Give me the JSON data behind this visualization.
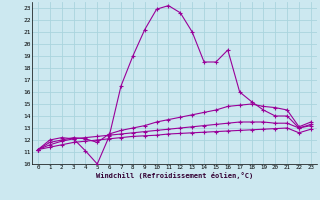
{
  "xlabel": "Windchill (Refroidissement éolien,°C)",
  "bg_color": "#cce8f0",
  "grid_color": "#aad4de",
  "line_color": "#990099",
  "xlim": [
    -0.5,
    23.5
  ],
  "ylim": [
    10,
    23.5
  ],
  "xticks": [
    0,
    1,
    2,
    3,
    4,
    5,
    6,
    7,
    8,
    9,
    10,
    11,
    12,
    13,
    14,
    15,
    16,
    17,
    18,
    19,
    20,
    21,
    22,
    23
  ],
  "yticks": [
    10,
    11,
    12,
    13,
    14,
    15,
    16,
    17,
    18,
    19,
    20,
    21,
    22,
    23
  ],
  "line1_x": [
    0,
    1,
    2,
    3,
    4,
    5,
    6,
    7,
    8,
    9,
    10,
    11,
    12,
    13,
    14,
    15,
    16,
    17,
    18,
    19,
    20,
    21,
    22,
    23
  ],
  "line1_y": [
    11.2,
    12.0,
    12.2,
    12.1,
    11.1,
    10.0,
    12.3,
    16.5,
    19.0,
    21.2,
    22.9,
    23.2,
    22.6,
    21.0,
    18.5,
    18.5,
    19.5,
    16.0,
    15.2,
    14.5,
    14.0,
    14.0,
    13.0,
    13.3
  ],
  "line2_x": [
    0,
    1,
    2,
    3,
    4,
    5,
    6,
    7,
    8,
    9,
    10,
    11,
    12,
    13,
    14,
    15,
    16,
    17,
    18,
    19,
    20,
    21,
    22,
    23
  ],
  "line2_y": [
    11.2,
    11.8,
    12.0,
    12.2,
    12.1,
    11.8,
    12.5,
    12.8,
    13.0,
    13.2,
    13.5,
    13.7,
    13.9,
    14.1,
    14.3,
    14.5,
    14.8,
    14.9,
    15.0,
    14.8,
    14.7,
    14.5,
    13.1,
    13.5
  ],
  "line3_x": [
    0,
    1,
    2,
    3,
    4,
    5,
    6,
    7,
    8,
    9,
    10,
    11,
    12,
    13,
    14,
    15,
    16,
    17,
    18,
    19,
    20,
    21,
    22,
    23
  ],
  "line3_y": [
    11.2,
    11.6,
    11.9,
    12.1,
    12.2,
    12.3,
    12.4,
    12.5,
    12.6,
    12.7,
    12.8,
    12.9,
    13.0,
    13.1,
    13.2,
    13.3,
    13.4,
    13.5,
    13.5,
    13.5,
    13.4,
    13.4,
    13.0,
    13.2
  ],
  "line4_x": [
    0,
    1,
    2,
    3,
    4,
    5,
    6,
    7,
    8,
    9,
    10,
    11,
    12,
    13,
    14,
    15,
    16,
    17,
    18,
    19,
    20,
    21,
    22,
    23
  ],
  "line4_y": [
    11.2,
    11.4,
    11.6,
    11.8,
    11.9,
    12.0,
    12.1,
    12.2,
    12.3,
    12.35,
    12.4,
    12.5,
    12.55,
    12.6,
    12.65,
    12.7,
    12.75,
    12.8,
    12.85,
    12.9,
    12.95,
    13.0,
    12.6,
    12.9
  ]
}
